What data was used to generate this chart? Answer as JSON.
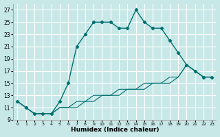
{
  "xlabel": "Humidex (Indice chaleur)",
  "background_color": "#c8e8e8",
  "grid_color": "#ffffff",
  "line_color": "#007070",
  "xlim": [
    -0.5,
    23.5
  ],
  "ylim": [
    9,
    28
  ],
  "yticks": [
    9,
    11,
    13,
    15,
    17,
    19,
    21,
    23,
    25,
    27
  ],
  "xticks": [
    0,
    1,
    2,
    3,
    4,
    5,
    6,
    7,
    8,
    9,
    10,
    11,
    12,
    13,
    14,
    15,
    16,
    17,
    18,
    19,
    20,
    21,
    22,
    23
  ],
  "line1_x": [
    0,
    1,
    2,
    3,
    4,
    5,
    6,
    7,
    8,
    9,
    10,
    11,
    12,
    13,
    14,
    15,
    16,
    17,
    18,
    19,
    20,
    21,
    22,
    23
  ],
  "line1_y": [
    12,
    11,
    10,
    10,
    10,
    12,
    15,
    21,
    23,
    25,
    25,
    25,
    24,
    24,
    27,
    25,
    24,
    24,
    22,
    20,
    18,
    17,
    16,
    16
  ],
  "line2_x": [
    0,
    1,
    2,
    3,
    4,
    5,
    6,
    7,
    8,
    9,
    10,
    11,
    12,
    13,
    14,
    15,
    16,
    17,
    18,
    19,
    20,
    21,
    22,
    23
  ],
  "line2_y": [
    12,
    11,
    10,
    10,
    10,
    11,
    11,
    11,
    12,
    12,
    13,
    13,
    13,
    14,
    14,
    14,
    15,
    15,
    15,
    16,
    18,
    17,
    16,
    16
  ],
  "line3_x": [
    0,
    1,
    2,
    3,
    4,
    5,
    6,
    7,
    8,
    9,
    10,
    11,
    12,
    13,
    14,
    15,
    16,
    17,
    18,
    19,
    20,
    21,
    22,
    23
  ],
  "line3_y": [
    12,
    11,
    10,
    10,
    10,
    11,
    11,
    12,
    12,
    13,
    13,
    13,
    14,
    14,
    14,
    15,
    15,
    15,
    16,
    16,
    18,
    17,
    16,
    16
  ]
}
